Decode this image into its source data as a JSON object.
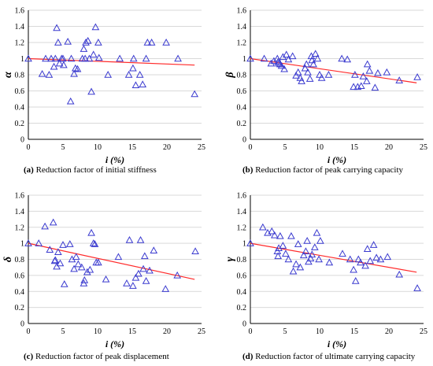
{
  "chart_data": [
    {
      "id": "a",
      "type": "scatter",
      "caption_letter": "(a)",
      "caption_text": "Reduction factor of initial stiffness",
      "xlabel": "i (%)",
      "ylabel": "α",
      "xlim": [
        0,
        25
      ],
      "ylim": [
        0,
        1.6
      ],
      "xticks": [
        0,
        5,
        10,
        15,
        20,
        25
      ],
      "yticks": [
        0,
        0.2,
        0.4,
        0.6,
        0.8,
        1,
        1.2,
        1.4,
        1.6
      ],
      "ytick_labels": [
        "0",
        "0.2",
        "0.4",
        "0.6",
        "0.8",
        "1",
        "1.2",
        "1.4",
        "1.6"
      ],
      "grid": true,
      "marker_color": "#3a3acf",
      "line_color": "#ff2a2a",
      "trendline": {
        "x": [
          0,
          24
        ],
        "y": [
          1.0,
          0.92
        ]
      },
      "points": {
        "x": [
          0,
          2,
          2.5,
          3,
          3.3,
          3.7,
          3.9,
          4.1,
          4.3,
          4.5,
          4.8,
          5.0,
          5.1,
          5.7,
          6.1,
          6.2,
          6.6,
          6.8,
          7.1,
          7.8,
          8.0,
          8.2,
          8.3,
          8.6,
          8.8,
          9.1,
          9.4,
          9.7,
          10.2,
          10.1,
          11.5,
          13.2,
          14.5,
          15.1,
          15.2,
          15.5,
          16.1,
          16.5,
          17.0,
          17.2,
          17.8,
          19.9,
          21.6,
          24.0
        ],
        "y": [
          1.0,
          0.81,
          1.0,
          0.8,
          1.0,
          0.9,
          1.0,
          1.38,
          1.2,
          0.94,
          1.0,
          1.0,
          0.92,
          1.21,
          0.47,
          1.0,
          0.81,
          0.88,
          0.87,
          1.0,
          1.12,
          1.0,
          1.2,
          1.22,
          1.0,
          0.59,
          1.05,
          1.39,
          1.01,
          1.2,
          0.8,
          1.0,
          0.8,
          0.88,
          1.0,
          0.67,
          0.8,
          0.68,
          1.0,
          1.2,
          1.2,
          1.2,
          1.0,
          0.56
        ]
      }
    },
    {
      "id": "b",
      "type": "scatter",
      "caption_letter": "(b)",
      "caption_text": "Reduction factor of peak carrying capacity",
      "xlabel": "i (%)",
      "ylabel": "β",
      "xlim": [
        0,
        25
      ],
      "ylim": [
        0,
        1.6
      ],
      "xticks": [
        0,
        5,
        10,
        15,
        20,
        25
      ],
      "yticks": [
        0,
        0.2,
        0.4,
        0.6,
        0.8,
        1,
        1.2,
        1.4,
        1.6
      ],
      "ytick_labels": [
        "0",
        "0.2",
        "0.4",
        "0.6",
        "0.8",
        "1",
        "1.2",
        "1.4",
        "1.6"
      ],
      "grid": true,
      "marker_color": "#3a3acf",
      "line_color": "#ff2a2a",
      "trendline": {
        "x": [
          0,
          24
        ],
        "y": [
          1.0,
          0.7
        ]
      },
      "points": {
        "x": [
          0,
          2,
          3,
          3.4,
          3.9,
          4.0,
          4.1,
          4.3,
          4.5,
          4.7,
          4.9,
          5.2,
          5.5,
          6.1,
          6.6,
          6.9,
          7.2,
          7.4,
          7.9,
          8.1,
          8.3,
          8.6,
          8.8,
          8.9,
          9.1,
          9.4,
          9.7,
          10.0,
          10.3,
          11.3,
          13.2,
          14.0,
          14.9,
          15.1,
          15.5,
          16.0,
          16.3,
          16.8,
          16.9,
          17.2,
          18.0,
          18.4,
          19.7,
          21.5,
          24.1
        ],
        "y": [
          1.0,
          1.0,
          0.94,
          0.97,
          1.0,
          0.96,
          0.94,
          0.93,
          0.91,
          1.02,
          0.87,
          1.05,
          0.99,
          1.03,
          0.79,
          0.83,
          0.76,
          0.72,
          0.88,
          0.93,
          0.83,
          0.75,
          1.03,
          0.98,
          0.93,
          1.06,
          1.0,
          0.8,
          0.76,
          0.8,
          1.0,
          0.99,
          0.65,
          0.8,
          0.65,
          0.66,
          0.78,
          0.72,
          0.93,
          0.85,
          0.64,
          0.82,
          0.83,
          0.73,
          0.77
        ]
      }
    },
    {
      "id": "c",
      "type": "scatter",
      "caption_letter": "(c)",
      "caption_text": "Reduction factor of peak displacement",
      "xlabel": "i (%)",
      "ylabel": "δ",
      "xlim": [
        0,
        25
      ],
      "ylim": [
        0,
        1.6
      ],
      "xticks": [
        0,
        5,
        10,
        15,
        20,
        25
      ],
      "yticks": [
        0,
        0.2,
        0.4,
        0.6,
        0.8,
        1,
        1.2,
        1.4,
        1.6
      ],
      "ytick_labels": [
        "0",
        "0.2",
        "0.4",
        "0.6",
        "0.8",
        "1",
        "1.2",
        "1.4",
        "1.6"
      ],
      "grid": true,
      "marker_color": "#3a3acf",
      "line_color": "#ff2a2a",
      "trendline": {
        "x": [
          0,
          24
        ],
        "y": [
          1.0,
          0.55
        ]
      },
      "points": {
        "x": [
          0,
          1.5,
          2.4,
          3.1,
          3.6,
          3.8,
          3.9,
          4.1,
          4.3,
          4.6,
          5.0,
          5.2,
          6.0,
          6.3,
          6.6,
          6.9,
          7.2,
          7.7,
          8.0,
          8.1,
          8.5,
          8.9,
          9.1,
          9.4,
          9.6,
          9.8,
          10.1,
          11.2,
          13.0,
          14.2,
          14.6,
          15.1,
          15.5,
          15.9,
          16.2,
          16.6,
          16.8,
          17.0,
          17.5,
          18.1,
          19.8,
          21.5,
          24.1
        ],
        "y": [
          1.0,
          1.0,
          1.21,
          0.92,
          1.26,
          0.78,
          0.79,
          0.71,
          0.89,
          0.75,
          0.98,
          0.49,
          0.99,
          0.8,
          0.68,
          0.83,
          0.74,
          0.7,
          0.5,
          0.54,
          0.64,
          0.67,
          1.13,
          1.0,
          0.99,
          0.76,
          0.76,
          0.55,
          0.83,
          0.5,
          1.04,
          0.47,
          0.57,
          0.62,
          1.04,
          0.68,
          0.84,
          0.53,
          0.66,
          0.91,
          0.43,
          0.6,
          0.9
        ]
      }
    },
    {
      "id": "d",
      "type": "scatter",
      "caption_letter": "(d)",
      "caption_text": "Reduction factor of ultimate carrying capacity",
      "xlabel": "i (%)",
      "ylabel": "γ",
      "xlim": [
        0,
        25
      ],
      "ylim": [
        0,
        1.6
      ],
      "xticks": [
        0,
        5,
        10,
        15,
        20,
        25
      ],
      "yticks": [
        0,
        0.2,
        0.4,
        0.6,
        0.8,
        1,
        1.2,
        1.4,
        1.6
      ],
      "ytick_labels": [
        "0",
        "0.2",
        "0.4",
        "0.6",
        "0.8",
        "1",
        "1.2",
        "1.4",
        "1.6"
      ],
      "grid": true,
      "marker_color": "#3a3acf",
      "line_color": "#ff2a2a",
      "trendline": {
        "x": [
          0,
          24
        ],
        "y": [
          1.0,
          0.64
        ]
      },
      "points": {
        "x": [
          0,
          1.8,
          2.5,
          3.1,
          3.5,
          3.9,
          4.0,
          4.1,
          4.3,
          4.7,
          5.1,
          5.5,
          5.9,
          6.2,
          6.6,
          6.9,
          7.2,
          7.7,
          8.0,
          8.2,
          8.4,
          8.7,
          8.9,
          9.3,
          9.6,
          9.9,
          10.1,
          11.4,
          13.3,
          14.4,
          14.9,
          15.2,
          15.6,
          15.9,
          16.6,
          16.9,
          17.3,
          17.8,
          18.2,
          18.8,
          19.8,
          21.5,
          24.1
        ],
        "y": [
          1.0,
          1.2,
          1.13,
          1.15,
          1.1,
          0.9,
          0.84,
          0.94,
          1.09,
          0.97,
          0.87,
          0.8,
          1.09,
          0.65,
          0.74,
          0.99,
          0.7,
          0.85,
          0.9,
          1.03,
          0.77,
          0.81,
          0.86,
          0.95,
          1.13,
          0.8,
          1.03,
          0.76,
          0.87,
          0.8,
          0.67,
          0.53,
          0.8,
          0.76,
          0.72,
          0.93,
          0.78,
          0.98,
          0.82,
          0.8,
          0.83,
          0.61,
          0.44
        ]
      }
    }
  ]
}
